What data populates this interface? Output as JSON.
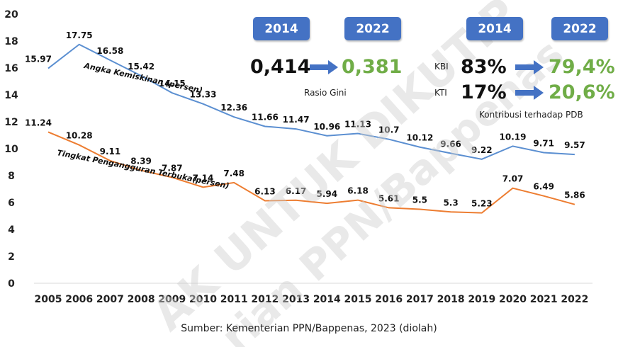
{
  "chart_data": {
    "type": "line",
    "categories": [
      "2005",
      "2006",
      "2007",
      "2008",
      "2009",
      "2010",
      "2011",
      "2012",
      "2013",
      "2014",
      "2015",
      "2016",
      "2017",
      "2018",
      "2019",
      "2020",
      "2021",
      "2022"
    ],
    "series": [
      {
        "name": "Angka Kemiskinan (persen)",
        "color": "#5b8fd1",
        "values": [
          15.97,
          17.75,
          16.58,
          15.42,
          14.15,
          13.33,
          12.36,
          11.66,
          11.47,
          10.96,
          11.13,
          10.7,
          10.12,
          9.66,
          9.22,
          10.19,
          9.71,
          9.57
        ],
        "labels": [
          "15.97",
          "17.75",
          "16.58",
          "15.42",
          "14.15",
          "13.33",
          "12.36",
          "11.66",
          "11.47",
          "10.96",
          "11.13",
          "10.7",
          "10.12",
          "9.66",
          "9.22",
          "10.19",
          "9.71",
          "9.57"
        ]
      },
      {
        "name": "Tingkat Pengangguran Terbuka(persen)",
        "color": "#ed7d31",
        "values": [
          11.24,
          10.28,
          9.11,
          8.39,
          7.87,
          7.14,
          7.48,
          6.13,
          6.17,
          5.94,
          6.18,
          5.61,
          5.5,
          5.3,
          5.23,
          7.07,
          6.49,
          5.86
        ],
        "labels": [
          "11.24",
          "10.28",
          "9.11",
          "8.39",
          "7.87",
          "7.14",
          "7.48",
          "6.13",
          "6.17",
          "5.94",
          "6.18",
          "5.61",
          "5.5",
          "5.3",
          "5.23",
          "7.07",
          "6.49",
          "5.86"
        ]
      }
    ],
    "ylim": [
      0,
      20
    ],
    "yticks": [
      "0",
      "2",
      "4",
      "6",
      "8",
      "10",
      "12",
      "14",
      "16",
      "18",
      "20"
    ],
    "title": "",
    "xlabel": "",
    "ylabel": ""
  },
  "panel": {
    "gini": {
      "year_from": "2014",
      "year_to": "2022",
      "value_from": "0,414",
      "value_to": "0,381",
      "label": "Rasio Gini"
    },
    "kontribusi": {
      "year_from": "2014",
      "year_to": "2022",
      "kbi_label": "KBI",
      "kbi_from": "83%",
      "kbi_to": "79,4%",
      "kti_label": "KTI",
      "kti_from": "17%",
      "kti_to": "20,6%",
      "caption": "Kontribusi terhadap PDB"
    },
    "accent": "#4472c4",
    "positive": "#70ad47"
  },
  "source": "Sumber: Kementerian PPN/Bappenas, 2023 (diolah)",
  "watermark": [
    "AK UNTUK DIKUTIP",
    "rian PPN/Bappenas"
  ]
}
